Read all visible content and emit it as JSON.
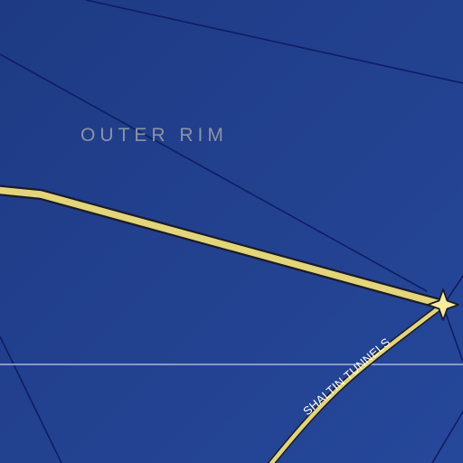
{
  "map": {
    "region_label": "OUTER RIM",
    "route_label": "SHALTIN TUNNELS",
    "colors": {
      "background": "#1f3c86",
      "background_light": "#2a4f9c",
      "grid_line": "#0f1d63",
      "route_fill": "#e2d57a",
      "route_outline": "#1b1b2a",
      "region_text": "#8d93a3",
      "horizontal_line": "#aab6dc",
      "route_label_text": "#ffffff",
      "star_fill": "#f6ec9c",
      "star_stroke": "#1b1b2a"
    },
    "icons": {
      "junction": "star-icon"
    }
  }
}
